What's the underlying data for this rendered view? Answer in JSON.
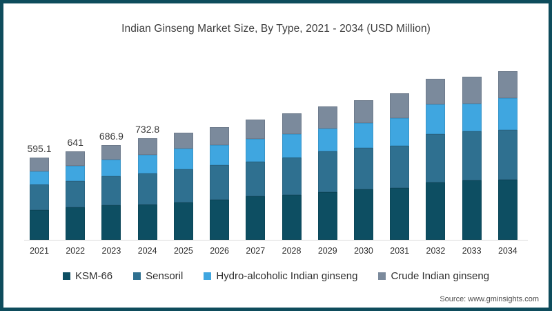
{
  "frame": {
    "border_color": "#0e4c5c",
    "background": "#ffffff"
  },
  "chart_data": {
    "type": "bar",
    "stacked": true,
    "title": "Indian Ginseng Market Size, By Type, 2021 - 2034 (USD Million)",
    "xlabel": "",
    "ylabel": "USD Million",
    "ylim": [
      0,
      1250
    ],
    "grid": false,
    "legend_position": "bottom",
    "categories": [
      "2021",
      "2022",
      "2023",
      "2024",
      "2025",
      "2026",
      "2027",
      "2028",
      "2029",
      "2030",
      "2031",
      "2032",
      "2033",
      "2034"
    ],
    "series": [
      {
        "name": "KSM-66",
        "color": "#0d4e62",
        "values": [
          214.6,
          234.6,
          252.5,
          256.0,
          272.0,
          289.0,
          313.5,
          326.5,
          346.5,
          363.5,
          376.5,
          416.5,
          430.0,
          436.5
        ]
      },
      {
        "name": "Sensoril",
        "color": "#2f7090",
        "values": [
          184.3,
          188.4,
          205.5,
          225.9,
          240.0,
          250.0,
          253.0,
          270.0,
          292.0,
          300.0,
          303.5,
          347.0,
          355.0,
          360.0
        ]
      },
      {
        "name": "Hydro-alcoholic Indian ginseng",
        "color": "#3fa6e0",
        "values": [
          95.7,
          114.6,
          124.2,
          134.0,
          150.0,
          148.0,
          163.5,
          167.0,
          168.0,
          180.0,
          200.0,
          216.5,
          200.0,
          228.0
        ]
      },
      {
        "name": "Crude Indian ginseng",
        "color": "#7b8a9c",
        "values": [
          100.5,
          103.4,
          104.7,
          116.9,
          113.0,
          130.0,
          141.5,
          153.0,
          157.5,
          165.0,
          178.5,
          186.5,
          196.5,
          195.0
        ]
      }
    ],
    "totals": [
      595.1,
      641.0,
      686.9,
      732.8,
      775.0,
      817.0,
      871.5,
      916.5,
      964.0,
      1008.5,
      1058.5,
      1166.5,
      1181.5,
      1219.5
    ],
    "bar_value_labels": [
      "595.1",
      "641",
      "686.9",
      "732.8",
      "",
      "",
      "",
      "",
      "",
      "",
      "",
      "",
      "",
      ""
    ]
  },
  "source": {
    "label": "Source: www.gminsights.com"
  }
}
